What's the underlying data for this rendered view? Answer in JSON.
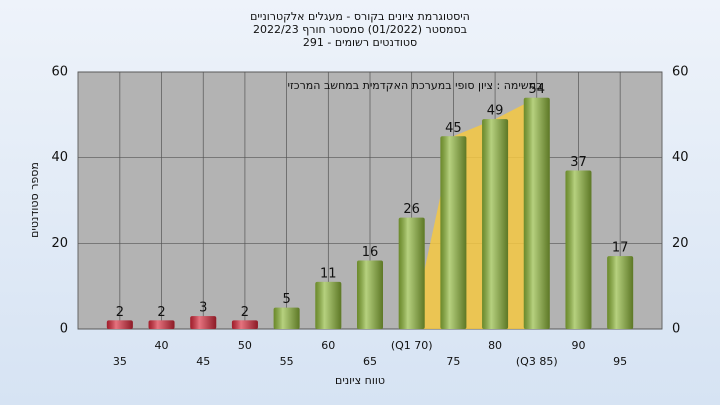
{
  "chart_data": {
    "type": "bar",
    "title": "היסטוגרמת ציונים בקורס - מעגלים אלקטרוניים",
    "subtitle": "בסמסטר  (01/2022)  סמסטר חורף  2022/23",
    "subtitle2": "סטודנטים רשומים - 291",
    "annotation": "במשימה : ציון סופי במערכת האקדמית במחשב המרכזי",
    "y_label": "מספר סטודנטים",
    "x_label": "טווח ציונים",
    "categories": [
      "35",
      "40",
      "45",
      "50",
      "55",
      "60",
      "65",
      "(Q1 70)",
      "75",
      "80",
      "(Q3 85)",
      "90",
      "95"
    ],
    "values": [
      2,
      2,
      3,
      2,
      5,
      11,
      16,
      26,
      45,
      49,
      54,
      37,
      17
    ],
    "colors": [
      "#d8283a",
      "#d8283a",
      "#d8283a",
      "#d8283a",
      "#8fb83a",
      "#8fb83a",
      "#8fb83a",
      "#8fb83a",
      "#8fb83a",
      "#8fb83a",
      "#8fb83a",
      "#8fb83a",
      "#8fb83a"
    ],
    "ylim": [
      0,
      60
    ],
    "yticks": [
      0,
      20,
      40,
      60
    ],
    "grid": true
  }
}
